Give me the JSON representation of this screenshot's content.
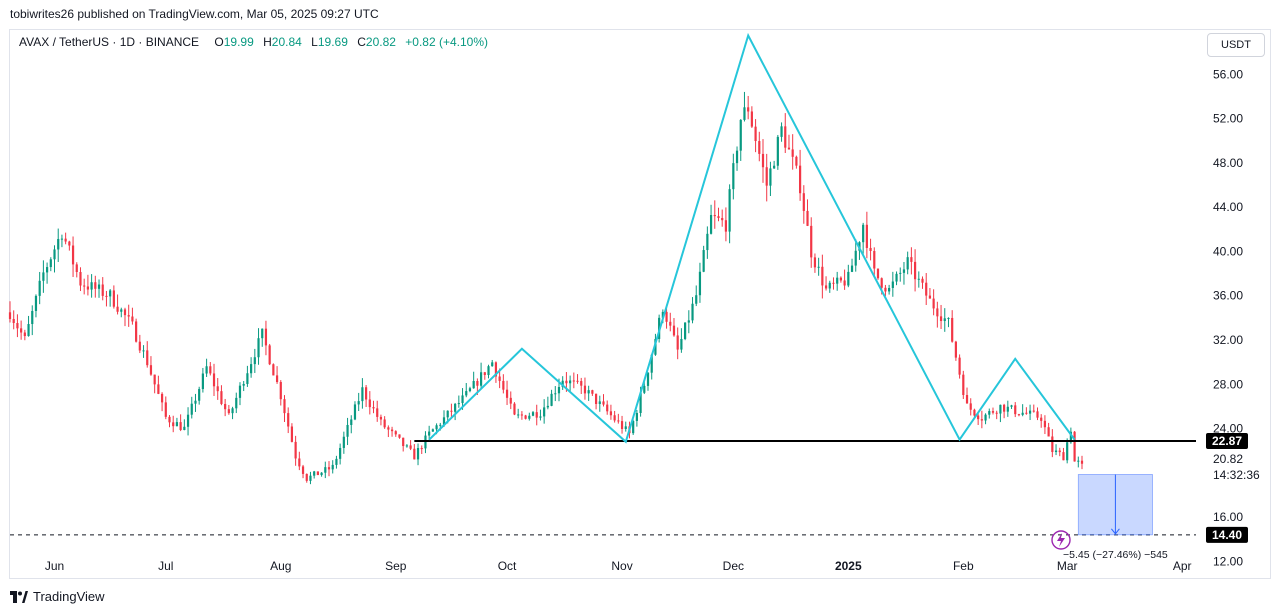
{
  "header": {
    "attribution": "tobiwrites26 published on TradingView.com, Mar 05, 2025 09:27 UTC"
  },
  "legend": {
    "symbol": "AVAX / TetherUS · 1D · BINANCE",
    "open_label": "O",
    "open": "19.99",
    "high_label": "H",
    "high": "20.84",
    "low_label": "L",
    "low": "19.69",
    "close_label": "C",
    "close": "20.82",
    "change": "+0.82 (+4.10%)"
  },
  "currency_button": "USDT",
  "footer": {
    "brand": "TradingView"
  },
  "colors": {
    "up": "#089981",
    "down": "#f23645",
    "pattern": "#26c6da",
    "level": "#000000",
    "target": "#2962ff"
  },
  "icons": {
    "brand": "tradingview-logo-icon",
    "dividend": "dividend-bolt-icon",
    "arrow": "arrow-down-icon"
  },
  "chart_data": {
    "type": "candlestick",
    "title": "AVAX / TetherUS · 1D · BINANCE",
    "x_tick_labels": [
      "Jun",
      "Jul",
      "Aug",
      "Sep",
      "Oct",
      "Nov",
      "Dec",
      "2025",
      "Feb",
      "Mar",
      "Apr"
    ],
    "y_tick_labels": [
      "56.00",
      "52.00",
      "48.00",
      "44.00",
      "40.00",
      "36.00",
      "32.00",
      "28.00",
      "24.00",
      "16.00",
      "12.00"
    ],
    "y_ticks": [
      56,
      52,
      48,
      44,
      40,
      36,
      32,
      28,
      24,
      16,
      12
    ],
    "ylim": [
      10.5,
      60
    ],
    "date_range": [
      "2024-05-20",
      "2025-04-05"
    ],
    "pattern": {
      "name": "head and shoulders",
      "points": [
        {
          "date": "2024-09-10",
          "value": 23.0
        },
        {
          "date": "2024-10-05",
          "value": 31.2
        },
        {
          "date": "2024-11-02",
          "value": 22.8
        },
        {
          "date": "2024-12-05",
          "value": 59.5
        },
        {
          "date": "2025-01-31",
          "value": 23.0
        },
        {
          "date": "2025-02-15",
          "value": 30.3
        },
        {
          "date": "2025-03-03",
          "value": 23.0
        }
      ]
    },
    "neckline": {
      "value": 22.87,
      "label": "22.87",
      "start": "2024-09-06",
      "end": "2025-04-05"
    },
    "target_line": {
      "value": 14.4,
      "label": "14.40"
    },
    "current_price": {
      "value": 20.82,
      "label": "20.82",
      "countdown": "14:32:36"
    },
    "measure": {
      "from": 19.85,
      "to": 14.4,
      "start": "2025-03-04",
      "end": "2025-03-24",
      "label": "−5.45 (−27.46%) −545"
    },
    "anchors": [
      {
        "date": "2024-05-20",
        "value": 34.5
      },
      {
        "date": "2024-05-24",
        "value": 32.0
      },
      {
        "date": "2024-05-29",
        "value": 38.0
      },
      {
        "date": "2024-06-03",
        "value": 41.8
      },
      {
        "date": "2024-06-08",
        "value": 37.2
      },
      {
        "date": "2024-06-16",
        "value": 36.0
      },
      {
        "date": "2024-06-22",
        "value": 33.2
      },
      {
        "date": "2024-06-26",
        "value": 30.0
      },
      {
        "date": "2024-07-01",
        "value": 25.0
      },
      {
        "date": "2024-07-06",
        "value": 24.0
      },
      {
        "date": "2024-07-12",
        "value": 29.5
      },
      {
        "date": "2024-07-18",
        "value": 25.0
      },
      {
        "date": "2024-07-22",
        "value": 28.5
      },
      {
        "date": "2024-07-27",
        "value": 32.5
      },
      {
        "date": "2024-08-01",
        "value": 27.0
      },
      {
        "date": "2024-08-05",
        "value": 21.5
      },
      {
        "date": "2024-08-08",
        "value": 19.5
      },
      {
        "date": "2024-08-15",
        "value": 20.5
      },
      {
        "date": "2024-08-23",
        "value": 27.5
      },
      {
        "date": "2024-08-28",
        "value": 24.5
      },
      {
        "date": "2024-09-06",
        "value": 21.5
      },
      {
        "date": "2024-09-10",
        "value": 23.5
      },
      {
        "date": "2024-09-20",
        "value": 27.0
      },
      {
        "date": "2024-09-27",
        "value": 30.0
      },
      {
        "date": "2024-10-03",
        "value": 25.0
      },
      {
        "date": "2024-10-10",
        "value": 25.5
      },
      {
        "date": "2024-10-16",
        "value": 28.5
      },
      {
        "date": "2024-10-22",
        "value": 27.5
      },
      {
        "date": "2024-10-28",
        "value": 25.5
      },
      {
        "date": "2024-11-03",
        "value": 23.5
      },
      {
        "date": "2024-11-07",
        "value": 28.0
      },
      {
        "date": "2024-11-12",
        "value": 35.0
      },
      {
        "date": "2024-11-16",
        "value": 31.0
      },
      {
        "date": "2024-11-21",
        "value": 36.0
      },
      {
        "date": "2024-11-25",
        "value": 43.0
      },
      {
        "date": "2024-11-29",
        "value": 42.5
      },
      {
        "date": "2024-12-03",
        "value": 52.0
      },
      {
        "date": "2024-12-05",
        "value": 53.0
      },
      {
        "date": "2024-12-10",
        "value": 46.0
      },
      {
        "date": "2024-12-14",
        "value": 51.0
      },
      {
        "date": "2024-12-19",
        "value": 46.0
      },
      {
        "date": "2024-12-22",
        "value": 40.0
      },
      {
        "date": "2024-12-26",
        "value": 36.5
      },
      {
        "date": "2025-01-01",
        "value": 37.5
      },
      {
        "date": "2025-01-05",
        "value": 42.5
      },
      {
        "date": "2025-01-08",
        "value": 38.0
      },
      {
        "date": "2025-01-12",
        "value": 36.5
      },
      {
        "date": "2025-01-17",
        "value": 39.0
      },
      {
        "date": "2025-01-23",
        "value": 35.5
      },
      {
        "date": "2025-01-28",
        "value": 33.5
      },
      {
        "date": "2025-02-02",
        "value": 26.0
      },
      {
        "date": "2025-02-06",
        "value": 25.0
      },
      {
        "date": "2025-02-11",
        "value": 26.0
      },
      {
        "date": "2025-02-16",
        "value": 25.5
      },
      {
        "date": "2025-02-22",
        "value": 25.0
      },
      {
        "date": "2025-02-25",
        "value": 22.0
      },
      {
        "date": "2025-02-28",
        "value": 21.5
      },
      {
        "date": "2025-03-02",
        "value": 24.0
      },
      {
        "date": "2025-03-03",
        "value": 21.0
      },
      {
        "date": "2025-03-05",
        "value": 20.8
      }
    ]
  }
}
